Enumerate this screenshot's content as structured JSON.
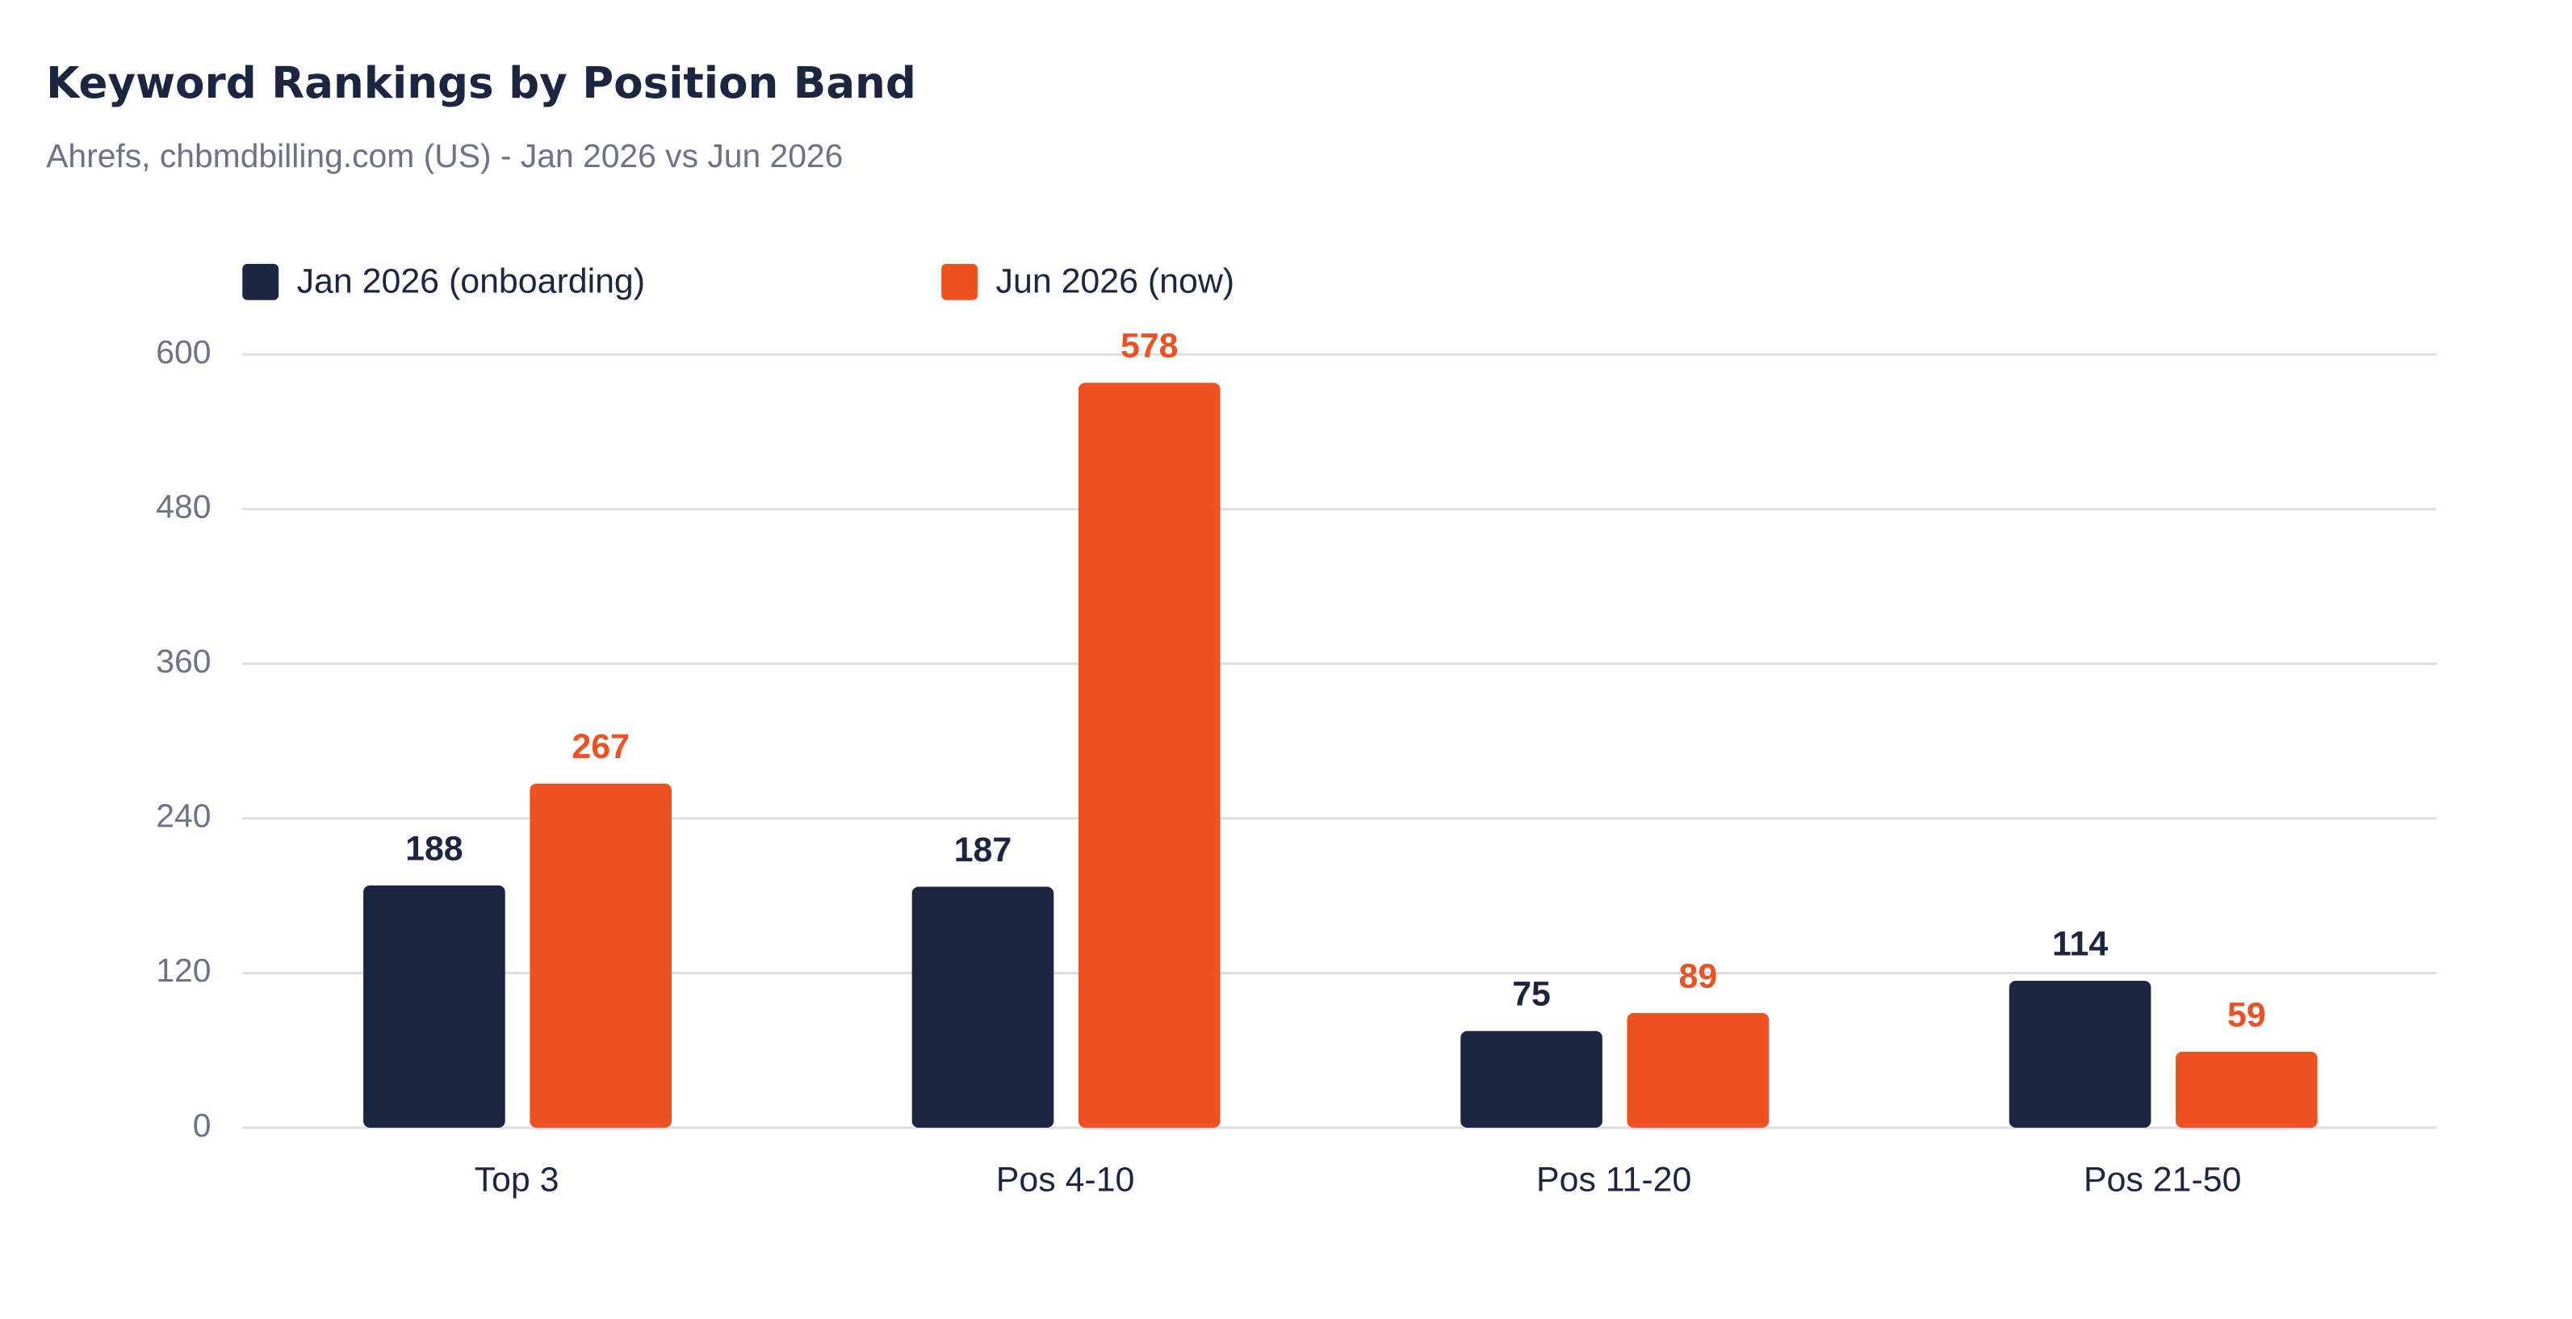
{
  "chart_data": {
    "type": "bar",
    "title": "Keyword Rankings by Position Band",
    "subtitle": "Ahrefs, chbmdbilling.com (US) - Jan 2026 vs Jun 2026",
    "categories": [
      "Top 3",
      "Pos 4-10",
      "Pos 11-20",
      "Pos 21-50"
    ],
    "series": [
      {
        "name": "Jan 2026 (onboarding)",
        "color": "#1c2640",
        "values": [
          188,
          187,
          75,
          114
        ]
      },
      {
        "name": "Jun 2026 (now)",
        "color": "#ee5122",
        "values": [
          267,
          578,
          89,
          59
        ]
      }
    ],
    "ylim": [
      0,
      600
    ],
    "yticks": [
      0,
      120,
      240,
      360,
      480,
      600
    ],
    "grid": true,
    "legend": "top"
  }
}
